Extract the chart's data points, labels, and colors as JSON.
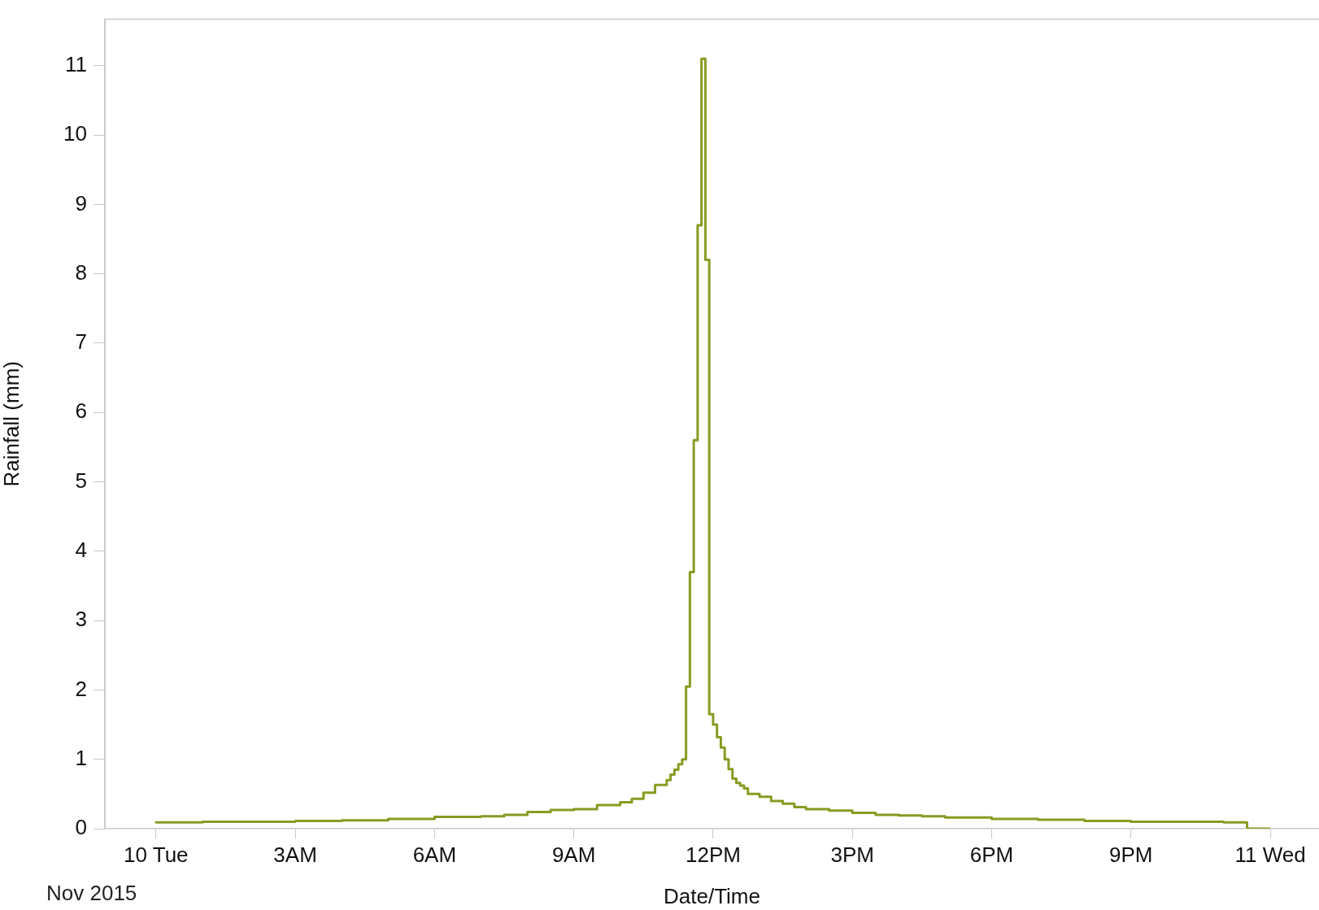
{
  "chart_data": {
    "type": "step",
    "xlabel": "Date/Time",
    "ylabel": "Rainfall (mm)",
    "annotations": [
      "Nov 2015"
    ],
    "x": [
      "2015-11-10T00:00",
      "2015-11-10T01:00",
      "2015-11-10T02:00",
      "2015-11-10T03:00",
      "2015-11-10T04:00",
      "2015-11-10T05:00",
      "2015-11-10T06:00",
      "2015-11-10T07:00",
      "2015-11-10T07:30",
      "2015-11-10T08:00",
      "2015-11-10T08:30",
      "2015-11-10T09:00",
      "2015-11-10T09:30",
      "2015-11-10T10:00",
      "2015-11-10T10:15",
      "2015-11-10T10:30",
      "2015-11-10T10:45",
      "2015-11-10T11:00",
      "2015-11-10T11:05",
      "2015-11-10T11:10",
      "2015-11-10T11:15",
      "2015-11-10T11:20",
      "2015-11-10T11:25",
      "2015-11-10T11:30",
      "2015-11-10T11:35",
      "2015-11-10T11:40",
      "2015-11-10T11:45",
      "2015-11-10T11:50",
      "2015-11-10T11:55",
      "2015-11-10T12:00",
      "2015-11-10T12:05",
      "2015-11-10T12:10",
      "2015-11-10T12:15",
      "2015-11-10T12:20",
      "2015-11-10T12:25",
      "2015-11-10T12:30",
      "2015-11-10T12:35",
      "2015-11-10T12:40",
      "2015-11-10T12:45",
      "2015-11-10T13:00",
      "2015-11-10T13:15",
      "2015-11-10T13:30",
      "2015-11-10T13:45",
      "2015-11-10T14:00",
      "2015-11-10T14:30",
      "2015-11-10T15:00",
      "2015-11-10T15:30",
      "2015-11-10T16:00",
      "2015-11-10T16:30",
      "2015-11-10T17:00",
      "2015-11-10T18:00",
      "2015-11-10T19:00",
      "2015-11-10T20:00",
      "2015-11-10T21:00",
      "2015-11-10T22:00",
      "2015-11-10T23:00",
      "2015-11-10T23:30",
      "2015-11-11T00:00"
    ],
    "series": [
      {
        "color": "#8a9a22",
        "values": [
          0.08,
          0.09,
          0.1,
          0.1,
          0.11,
          0.12,
          0.14,
          0.17,
          0.18,
          0.2,
          0.24,
          0.27,
          0.28,
          0.34,
          0.38,
          0.43,
          0.52,
          0.63,
          0.7,
          0.78,
          0.85,
          0.93,
          1.0,
          2.05,
          3.7,
          5.6,
          8.7,
          11.1,
          8.2,
          1.65,
          1.5,
          1.32,
          1.17,
          1.0,
          0.86,
          0.72,
          0.66,
          0.62,
          0.58,
          0.5,
          0.46,
          0.4,
          0.36,
          0.31,
          0.28,
          0.26,
          0.23,
          0.2,
          0.19,
          0.18,
          0.16,
          0.14,
          0.13,
          0.11,
          0.1,
          0.1,
          0.09,
          0
        ]
      }
    ],
    "xlim": [
      "2015-11-09T22:54",
      "2015-11-11T01:03"
    ],
    "ylim": [
      0,
      11.67
    ],
    "xticks": [
      {
        "value": "2015-11-10T00:00",
        "label": "10 Tue"
      },
      {
        "value": "2015-11-10T03:00",
        "label": "3AM"
      },
      {
        "value": "2015-11-10T06:00",
        "label": "6AM"
      },
      {
        "value": "2015-11-10T09:00",
        "label": "9AM"
      },
      {
        "value": "2015-11-10T12:00",
        "label": "12PM"
      },
      {
        "value": "2015-11-10T15:00",
        "label": "3PM"
      },
      {
        "value": "2015-11-10T18:00",
        "label": "6PM"
      },
      {
        "value": "2015-11-10T21:00",
        "label": "9PM"
      },
      {
        "value": "2015-11-11T00:00",
        "label": "11 Wed"
      }
    ],
    "yticks": [
      0,
      1,
      2,
      3,
      4,
      5,
      6,
      7,
      8,
      9,
      10,
      11
    ],
    "grid": false,
    "legend": false,
    "marker": "none",
    "line_style": "solid"
  }
}
